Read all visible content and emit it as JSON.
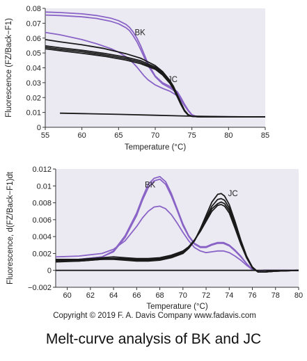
{
  "caption": "Melt-curve analysis of BK and JC",
  "copyright": "Copyright © 2019 F. A. Davis Company www.fadavis.com",
  "colors": {
    "bk": "#8a63c6",
    "jc": "#1a1a1a",
    "panel_bg": "#ebeaf3"
  },
  "chart_data": [
    {
      "type": "line",
      "xlabel": "Temperature (°C)",
      "ylabel": "Fluorescence (FZ/Back−F1)",
      "xlim": [
        55,
        85
      ],
      "ylim": [
        0,
        0.08
      ],
      "xticks": [
        55,
        60,
        65,
        70,
        75,
        80,
        85
      ],
      "yticks": [
        0,
        0.01,
        0.02,
        0.03,
        0.04,
        0.05,
        0.06,
        0.07,
        0.08
      ],
      "ytick_labels": [
        "0",
        "0.01",
        "0.02",
        "0.03",
        "0.04",
        "0.05",
        "0.06",
        "0.07",
        "0.08"
      ],
      "annotations": [
        {
          "text": "BK",
          "x": 67.2,
          "y": 0.062
        },
        {
          "text": "JC",
          "x": 71.7,
          "y": 0.0305
        }
      ],
      "series": [
        {
          "group": "BK",
          "x": [
            55,
            57,
            60,
            62,
            64,
            65,
            66,
            66.5,
            67,
            67.5,
            68,
            68.5,
            69,
            70,
            71,
            72,
            73,
            73.5,
            74,
            74.5,
            75,
            75.5,
            76,
            78,
            85
          ],
          "y": [
            0.0775,
            0.0772,
            0.0763,
            0.0752,
            0.0733,
            0.0717,
            0.0692,
            0.0672,
            0.064,
            0.06,
            0.055,
            0.049,
            0.043,
            0.0345,
            0.03,
            0.0275,
            0.024,
            0.02,
            0.0155,
            0.0115,
            0.0085,
            0.0075,
            0.0072,
            0.0071,
            0.007
          ]
        },
        {
          "group": "BK",
          "x": [
            55,
            57,
            60,
            62,
            64,
            65,
            66,
            66.5,
            67,
            67.5,
            68,
            68.5,
            69,
            70,
            71,
            72,
            73,
            73.5,
            74,
            74.5,
            75,
            75.5,
            76,
            78,
            85
          ],
          "y": [
            0.0755,
            0.0752,
            0.0743,
            0.0732,
            0.0712,
            0.0696,
            0.067,
            0.065,
            0.0615,
            0.0575,
            0.0525,
            0.047,
            0.0415,
            0.034,
            0.0292,
            0.0265,
            0.023,
            0.0192,
            0.015,
            0.0112,
            0.0083,
            0.0075,
            0.0072,
            0.0071,
            0.007
          ]
        },
        {
          "group": "BK",
          "x": [
            55,
            57,
            60,
            62,
            64,
            65,
            66,
            66.5,
            67,
            67.5,
            68,
            68.5,
            69,
            70,
            71,
            72,
            73,
            73.5,
            74,
            74.5,
            75,
            75.5,
            76,
            78,
            85
          ],
          "y": [
            0.0638,
            0.0622,
            0.059,
            0.0562,
            0.0528,
            0.0505,
            0.0475,
            0.0455,
            0.0432,
            0.0405,
            0.0375,
            0.0345,
            0.032,
            0.0285,
            0.0262,
            0.0243,
            0.0212,
            0.0182,
            0.0145,
            0.011,
            0.0083,
            0.0075,
            0.0072,
            0.0071,
            0.007
          ]
        },
        {
          "group": "JC",
          "x": [
            55,
            57,
            60,
            63,
            66,
            68,
            70,
            71,
            72,
            72.5,
            73,
            73.5,
            74,
            74.5,
            75,
            75.5,
            76,
            78,
            85
          ],
          "y": [
            0.059,
            0.0575,
            0.0555,
            0.053,
            0.0495,
            0.0465,
            0.0415,
            0.0375,
            0.0315,
            0.0275,
            0.022,
            0.0165,
            0.0115,
            0.0085,
            0.0075,
            0.0072,
            0.0071,
            0.007,
            0.007
          ]
        },
        {
          "group": "JC",
          "x": [
            55,
            57,
            60,
            63,
            66,
            68,
            70,
            71,
            72,
            72.5,
            73,
            73.5,
            74,
            74.5,
            75,
            75.5,
            76,
            78,
            85
          ],
          "y": [
            0.0548,
            0.0535,
            0.0518,
            0.0498,
            0.0472,
            0.0448,
            0.0405,
            0.0368,
            0.031,
            0.027,
            0.0215,
            0.016,
            0.0112,
            0.0083,
            0.0074,
            0.0072,
            0.0071,
            0.007,
            0.007
          ]
        },
        {
          "group": "JC",
          "x": [
            55,
            57,
            60,
            63,
            66,
            68,
            70,
            71,
            72,
            72.5,
            73,
            73.5,
            74,
            74.5,
            75,
            75.5,
            76,
            78,
            85
          ],
          "y": [
            0.0538,
            0.0525,
            0.0508,
            0.0488,
            0.0462,
            0.0438,
            0.0397,
            0.036,
            0.0302,
            0.0263,
            0.021,
            0.0157,
            0.011,
            0.0082,
            0.0074,
            0.0072,
            0.0071,
            0.007,
            0.007
          ]
        },
        {
          "group": "JC",
          "x": [
            55,
            57,
            60,
            63,
            66,
            68,
            70,
            71,
            72,
            72.5,
            73,
            73.5,
            74,
            74.5,
            75,
            75.5,
            76,
            78,
            85
          ],
          "y": [
            0.0528,
            0.0515,
            0.0498,
            0.0478,
            0.0452,
            0.0428,
            0.039,
            0.0352,
            0.0295,
            0.0256,
            0.0205,
            0.0152,
            0.0108,
            0.0081,
            0.0074,
            0.0072,
            0.0071,
            0.007,
            0.007
          ]
        },
        {
          "group": "JC",
          "x": [
            57,
            60,
            65,
            70,
            75,
            80,
            85
          ],
          "y": [
            0.0095,
            0.0092,
            0.0087,
            0.0081,
            0.0075,
            0.0071,
            0.007
          ]
        }
      ]
    },
    {
      "type": "line",
      "xlabel": "Temperature (°C)",
      "ylabel": "Fluorescence, d(FZ/Back−F1)dt",
      "xlim": [
        59,
        80
      ],
      "ylim": [
        -0.002,
        0.012
      ],
      "xticks": [
        60,
        62,
        64,
        66,
        68,
        70,
        72,
        74,
        76,
        78,
        80
      ],
      "yticks": [
        -0.002,
        0,
        0.002,
        0.004,
        0.006,
        0.008,
        0.01,
        0.012
      ],
      "ytick_labels": [
        "−0.002",
        "0",
        "0.002",
        "0.004",
        "0.006",
        "0.008",
        "0.01",
        "0.012"
      ],
      "annotations": [
        {
          "text": "BK",
          "x": 66.7,
          "y": 0.0098
        },
        {
          "text": "JC",
          "x": 73.9,
          "y": 0.0088
        }
      ],
      "series": [
        {
          "group": "BK",
          "x": [
            59,
            61,
            63,
            64,
            65,
            66,
            66.5,
            67,
            67.5,
            68,
            68.5,
            69,
            69.5,
            70,
            70.5,
            71,
            71.5,
            72,
            72.5,
            73,
            73.5,
            74,
            74.5,
            75,
            75.5,
            76,
            76.5,
            77,
            80
          ],
          "y": [
            0.0012,
            0.0013,
            0.0016,
            0.0023,
            0.0041,
            0.0068,
            0.0086,
            0.0102,
            0.0109,
            0.0111,
            0.0105,
            0.0091,
            0.0073,
            0.0055,
            0.0041,
            0.0032,
            0.0028,
            0.0028,
            0.0031,
            0.0033,
            0.0033,
            0.003,
            0.0024,
            0.0017,
            0.0008,
            0.0001,
            -0.0001,
            0,
            0
          ]
        },
        {
          "group": "BK",
          "x": [
            59,
            61,
            63,
            64,
            65,
            66,
            66.5,
            67,
            67.5,
            68,
            68.5,
            69,
            69.5,
            70,
            70.5,
            71,
            71.5,
            72,
            72.5,
            73,
            73.5,
            74,
            74.5,
            75,
            75.5,
            76,
            76.5,
            77,
            80
          ],
          "y": [
            0.0012,
            0.0013,
            0.0016,
            0.0022,
            0.0039,
            0.0065,
            0.0083,
            0.0098,
            0.0106,
            0.0108,
            0.0102,
            0.0088,
            0.0071,
            0.0053,
            0.004,
            0.0031,
            0.0027,
            0.0027,
            0.003,
            0.0032,
            0.0032,
            0.0029,
            0.0023,
            0.0016,
            0.0008,
            0.0001,
            -0.0001,
            0,
            0
          ]
        },
        {
          "group": "BK",
          "x": [
            59,
            61,
            63,
            64,
            65,
            66,
            66.5,
            67,
            67.5,
            68,
            68.5,
            69,
            69.5,
            70,
            70.5,
            71,
            71.5,
            72,
            72.5,
            73,
            73.5,
            74,
            74.5,
            75,
            75.5,
            76,
            76.5,
            77,
            80
          ],
          "y": [
            0.0016,
            0.0017,
            0.002,
            0.0025,
            0.0035,
            0.0052,
            0.0062,
            0.007,
            0.0075,
            0.0076,
            0.0073,
            0.0066,
            0.0056,
            0.0045,
            0.0035,
            0.0027,
            0.0023,
            0.0021,
            0.0022,
            0.0023,
            0.0023,
            0.0021,
            0.0017,
            0.0012,
            0.0006,
            0.0001,
            -0.0001,
            0,
            0
          ]
        },
        {
          "group": "JC",
          "x": [
            59,
            61,
            63,
            64,
            65,
            66,
            67,
            68,
            69,
            70,
            70.5,
            71,
            71.5,
            72,
            72.5,
            73,
            73.3,
            73.6,
            74,
            74.5,
            75,
            75.5,
            76,
            76.5,
            77,
            78,
            80
          ],
          "y": [
            0.0011,
            0.0011,
            0.0013,
            0.0013,
            0.0012,
            0.0011,
            0.0011,
            0.0012,
            0.0015,
            0.002,
            0.0026,
            0.0035,
            0.0049,
            0.0065,
            0.0081,
            0.009,
            0.0091,
            0.0088,
            0.0078,
            0.0058,
            0.0036,
            0.0017,
            0.0004,
            -0.0002,
            -0.0002,
            -0.0001,
            0
          ]
        },
        {
          "group": "JC",
          "x": [
            59,
            61,
            63,
            64,
            65,
            66,
            67,
            68,
            69,
            70,
            70.5,
            71,
            71.5,
            72,
            72.5,
            73,
            73.3,
            73.6,
            74,
            74.5,
            75,
            75.5,
            76,
            76.5,
            77,
            78,
            80
          ],
          "y": [
            0.0012,
            0.0012,
            0.0014,
            0.0014,
            0.0013,
            0.0012,
            0.0012,
            0.0013,
            0.0016,
            0.0021,
            0.0027,
            0.0035,
            0.0047,
            0.0062,
            0.0076,
            0.0084,
            0.0085,
            0.0083,
            0.0074,
            0.0055,
            0.0034,
            0.0016,
            0.0004,
            -0.0002,
            -0.0002,
            -0.0001,
            0
          ]
        },
        {
          "group": "JC",
          "x": [
            59,
            61,
            63,
            64,
            65,
            66,
            67,
            68,
            69,
            70,
            70.5,
            71,
            71.5,
            72,
            72.5,
            73,
            73.3,
            73.6,
            74,
            74.5,
            75,
            75.5,
            76,
            76.5,
            77,
            78,
            80
          ],
          "y": [
            0.001,
            0.0011,
            0.0013,
            0.0014,
            0.0014,
            0.0013,
            0.0013,
            0.0014,
            0.0017,
            0.0022,
            0.0028,
            0.0036,
            0.0047,
            0.006,
            0.0073,
            0.0079,
            0.0081,
            0.0079,
            0.0071,
            0.0052,
            0.0032,
            0.0015,
            0.0003,
            -0.0002,
            -0.0002,
            -0.0001,
            0
          ]
        },
        {
          "group": "JC",
          "x": [
            59,
            61,
            63,
            64,
            65,
            66,
            67,
            68,
            69,
            70,
            70.5,
            71,
            71.5,
            72,
            72.5,
            73,
            73.3,
            73.6,
            74,
            74.5,
            75,
            75.5,
            76,
            76.5,
            77,
            78,
            80
          ],
          "y": [
            0.0013,
            0.0013,
            0.0015,
            0.0016,
            0.0015,
            0.0014,
            0.0014,
            0.0015,
            0.0018,
            0.0023,
            0.0028,
            0.0036,
            0.0046,
            0.0058,
            0.007,
            0.0077,
            0.0078,
            0.0076,
            0.0068,
            0.005,
            0.0031,
            0.0015,
            0.0003,
            -0.0002,
            -0.0002,
            -0.0001,
            0
          ]
        },
        {
          "group": "JC",
          "x": [
            59,
            65,
            70,
            75,
            76,
            80
          ],
          "y": [
            0,
            0,
            0,
            0,
            0,
            0
          ]
        }
      ]
    }
  ]
}
